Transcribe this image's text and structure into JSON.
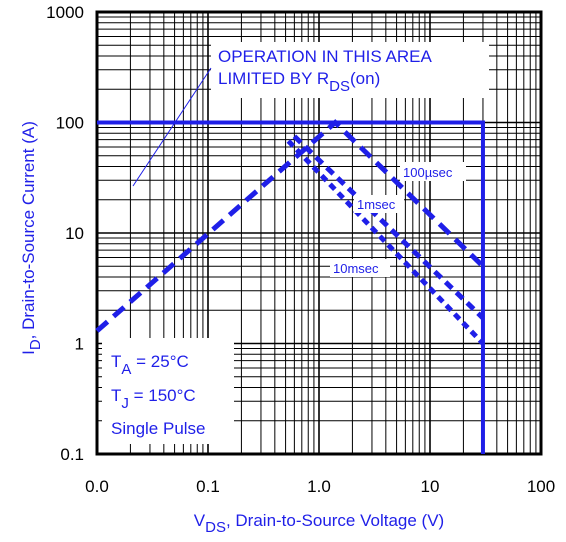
{
  "chart_data": {
    "type": "line",
    "x_scale": "log",
    "y_scale": "log",
    "xlim": [
      0.01,
      100
    ],
    "ylim": [
      0.1,
      1000
    ],
    "grid": true,
    "x_tick_labels": [
      "0.0",
      "0.1",
      "1.0",
      "10",
      "100"
    ],
    "y_tick_labels": [
      "0.1",
      "1",
      "10",
      "100",
      "1000"
    ],
    "xlabel": {
      "main": "V",
      "sub": "DS",
      "rest": ", Drain-to-Source Voltage (V)"
    },
    "ylabel": {
      "main": "I",
      "sub": "D",
      "rest": ",  Drain-to-Source Current (A)"
    },
    "annotation": {
      "line1": "OPERATION IN THIS AREA",
      "line2_main": "LIMITED BY R",
      "line2_sub": "DS",
      "line2_rest": "(on)"
    },
    "conditions": {
      "ta_main": "T",
      "ta_sub": "A",
      "ta_rest": " = 25°C",
      "tj_main": "T",
      "tj_sub": "J",
      "tj_rest": " = 150°C",
      "pulse": "Single Pulse"
    },
    "limit_line": {
      "x": [
        0.01,
        30,
        30
      ],
      "y": [
        100,
        100,
        0.1
      ]
    },
    "series": [
      {
        "name": "100µsec",
        "x": [
          0.01,
          1.4,
          30
        ],
        "y": [
          1.3,
          100,
          5
        ]
      },
      {
        "name": "1msec",
        "x": [
          0.6,
          30
        ],
        "y": [
          75,
          1.7
        ]
      },
      {
        "name": "10msec",
        "x": [
          0.53,
          30
        ],
        "y": [
          68,
          1
        ]
      }
    ],
    "colors": {
      "line": "#1f1fe8",
      "grid": "#000000",
      "text": "#000000"
    }
  }
}
